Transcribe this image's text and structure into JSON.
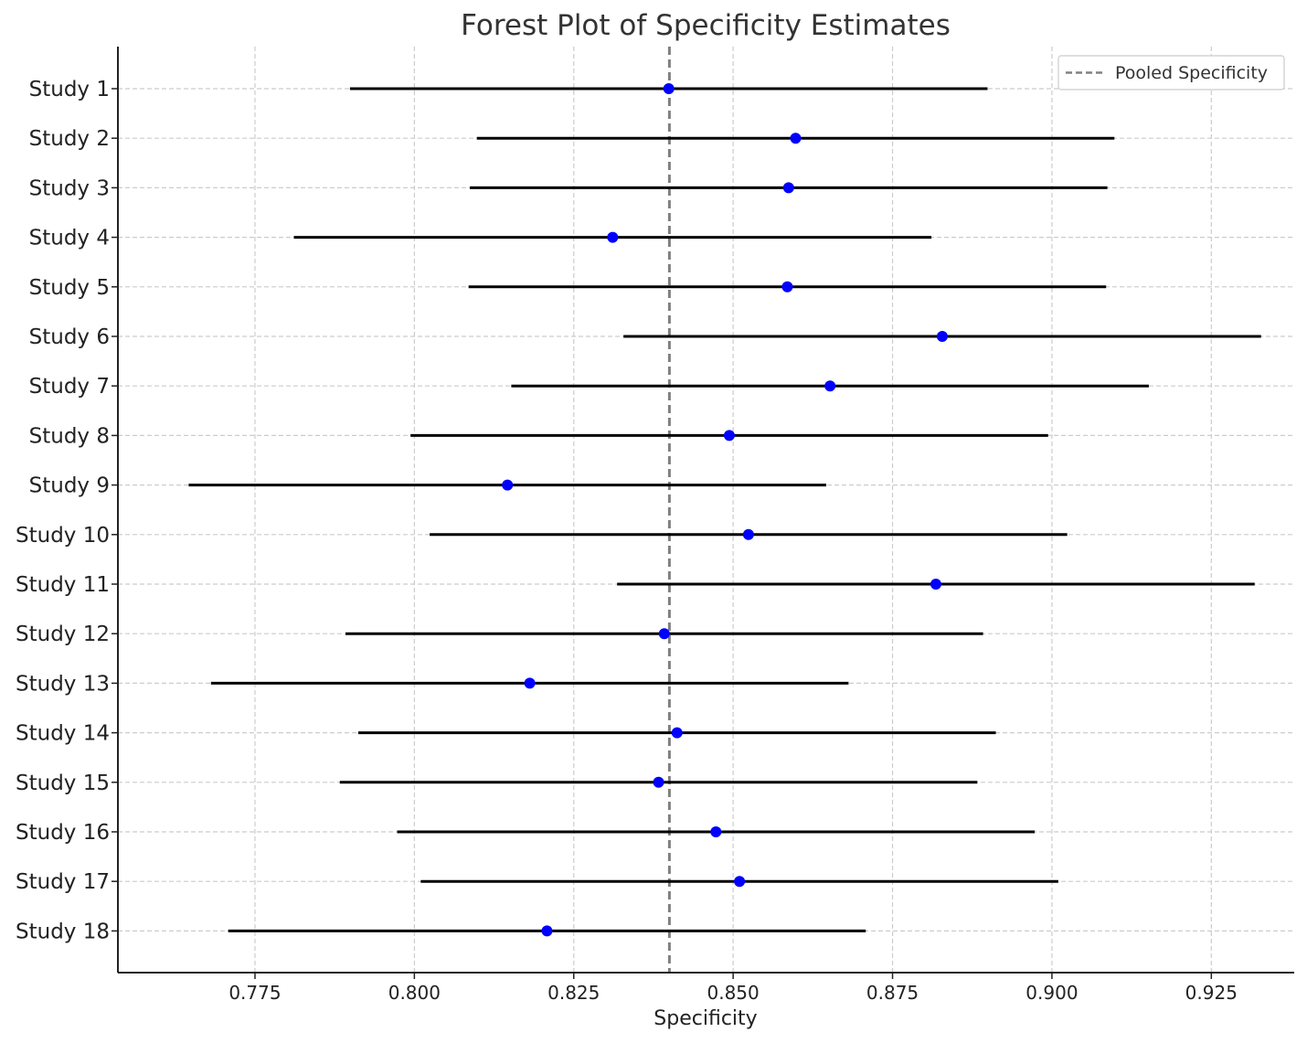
{
  "chart_data": {
    "type": "forest",
    "title": "Forest Plot of Specificity Estimates",
    "xlabel": "Specificity",
    "ylabel": "",
    "xlim": [
      0.7535,
      0.938
    ],
    "xticks": [
      0.775,
      0.8,
      0.825,
      0.85,
      0.875,
      0.9,
      0.925
    ],
    "xtick_labels": [
      "0.775",
      "0.800",
      "0.825",
      "0.850",
      "0.875",
      "0.900",
      "0.925"
    ],
    "grid": true,
    "legend_position": "top-right",
    "pooled": {
      "label": "Pooled Specificity",
      "value": 0.84,
      "color": "#808080",
      "style": "dashed"
    },
    "point_color": "#0000ff",
    "ci_color": "#000000",
    "studies": [
      {
        "label": "Study 1",
        "estimate": 0.8399,
        "lower": 0.7899,
        "upper": 0.8899
      },
      {
        "label": "Study 2",
        "estimate": 0.8598,
        "lower": 0.8098,
        "upper": 0.9098
      },
      {
        "label": "Study 3",
        "estimate": 0.8587,
        "lower": 0.8087,
        "upper": 0.9087
      },
      {
        "label": "Study 4",
        "estimate": 0.8311,
        "lower": 0.7811,
        "upper": 0.8811
      },
      {
        "label": "Study 5",
        "estimate": 0.8585,
        "lower": 0.8085,
        "upper": 0.9085
      },
      {
        "label": "Study 6",
        "estimate": 0.8828,
        "lower": 0.8328,
        "upper": 0.9328
      },
      {
        "label": "Study 7",
        "estimate": 0.8652,
        "lower": 0.8152,
        "upper": 0.9152
      },
      {
        "label": "Study 8",
        "estimate": 0.8494,
        "lower": 0.7994,
        "upper": 0.8994
      },
      {
        "label": "Study 9",
        "estimate": 0.8146,
        "lower": 0.7646,
        "upper": 0.8646
      },
      {
        "label": "Study 10",
        "estimate": 0.8524,
        "lower": 0.8024,
        "upper": 0.9024
      },
      {
        "label": "Study 11",
        "estimate": 0.8818,
        "lower": 0.8318,
        "upper": 0.9318
      },
      {
        "label": "Study 12",
        "estimate": 0.8392,
        "lower": 0.7892,
        "upper": 0.8892
      },
      {
        "label": "Study 13",
        "estimate": 0.8181,
        "lower": 0.7681,
        "upper": 0.8681
      },
      {
        "label": "Study 14",
        "estimate": 0.8412,
        "lower": 0.7912,
        "upper": 0.8912
      },
      {
        "label": "Study 15",
        "estimate": 0.8383,
        "lower": 0.7883,
        "upper": 0.8883
      },
      {
        "label": "Study 16",
        "estimate": 0.8473,
        "lower": 0.7973,
        "upper": 0.8973
      },
      {
        "label": "Study 17",
        "estimate": 0.851,
        "lower": 0.801,
        "upper": 0.901
      },
      {
        "label": "Study 18",
        "estimate": 0.8208,
        "lower": 0.7708,
        "upper": 0.8708
      }
    ]
  }
}
